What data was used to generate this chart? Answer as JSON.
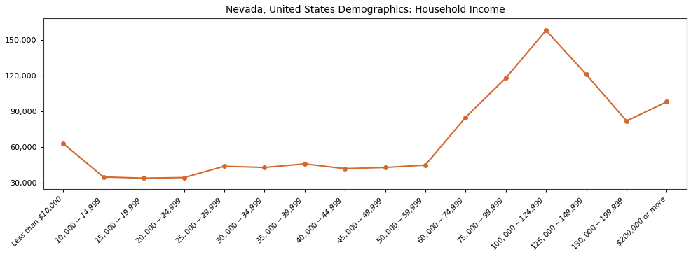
{
  "title": "Nevada, United States Demographics: Household Income",
  "categories": [
    "Less than $10,000",
    "$10,000 - $14,999",
    "$15,000 - $19,999",
    "$20,000 - $24,999",
    "$25,000 - $29,999",
    "$30,000 - $34,999",
    "$35,000 - $39,999",
    "$40,000 - $44,999",
    "$45,000 - $49,999",
    "$50,000 - $59,999",
    "$60,000 - $74,999",
    "$75,000 - $99,999",
    "$100,000 - $124,999",
    "$125,000 - $149,999",
    "$150,000 - $199,999",
    "$200,000 or more"
  ],
  "values": [
    63000,
    35000,
    34000,
    34500,
    44000,
    43000,
    46000,
    42000,
    43000,
    45000,
    85000,
    118000,
    158000,
    121000,
    82000,
    98000
  ],
  "line_color": "#d2692e",
  "marker": "o",
  "marker_size": 4,
  "linewidth": 1.5,
  "ylim": [
    25000,
    168000
  ],
  "yticks": [
    30000,
    60000,
    90000,
    120000,
    150000
  ],
  "background_color": "#ffffff",
  "title_fontsize": 10,
  "tick_fontsize": 7.5,
  "ytick_fontsize": 8
}
